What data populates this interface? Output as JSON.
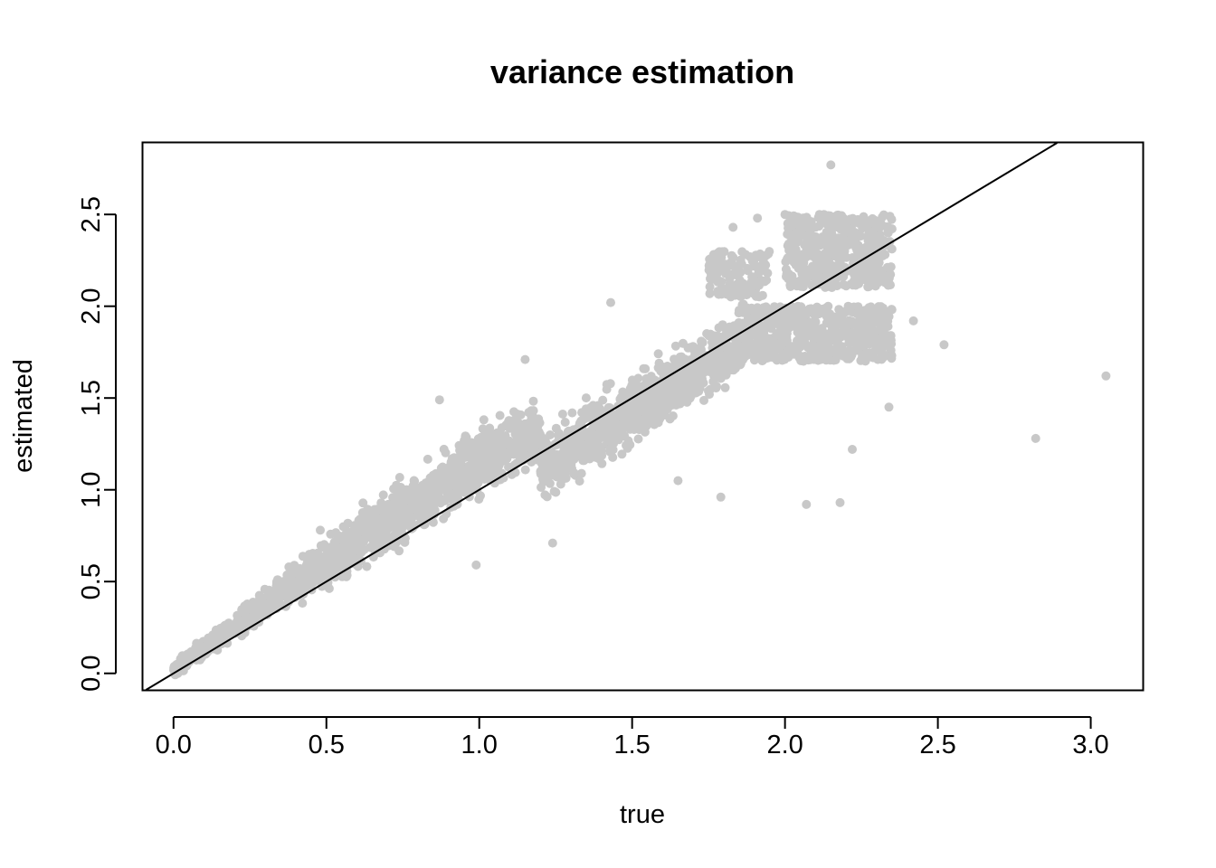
{
  "chart_data": {
    "type": "scatter",
    "title": "variance estimation",
    "xlabel": "true",
    "ylabel": "estimated",
    "xlim": [
      -0.1,
      3.17
    ],
    "ylim": [
      -0.09,
      2.89
    ],
    "x_ticks": [
      0.0,
      0.5,
      1.0,
      1.5,
      2.0,
      2.5,
      3.0
    ],
    "x_tick_labels": [
      "0.0",
      "0.5",
      "1.0",
      "1.5",
      "2.0",
      "2.5",
      "3.0"
    ],
    "y_ticks": [
      0.0,
      0.5,
      1.0,
      1.5,
      2.0,
      2.5
    ],
    "y_tick_labels": [
      "0.0",
      "0.5",
      "1.0",
      "1.5",
      "2.0",
      "2.5"
    ],
    "grid": false,
    "point_color": "#c8c8c8",
    "reference_line": {
      "slope": 1,
      "intercept": 0,
      "color": "#000000"
    },
    "point_bands": [
      {
        "x_range": [
          0.0,
          1.9
        ],
        "offset_at_zero": 0.02,
        "offset_per_unit": 0.12,
        "spread": 0.08
      },
      {
        "x_range": [
          1.9,
          2.35
        ],
        "y_range": [
          1.7,
          2.0
        ]
      },
      {
        "x_range": [
          2.0,
          2.35
        ],
        "y_range": [
          2.1,
          2.5
        ]
      },
      {
        "x_range": [
          1.75,
          1.95
        ],
        "y_range": [
          2.05,
          2.3
        ]
      }
    ],
    "notable_points": [
      {
        "x": 2.15,
        "y": 2.77
      },
      {
        "x": 3.05,
        "y": 1.62
      },
      {
        "x": 2.82,
        "y": 1.28
      },
      {
        "x": 2.52,
        "y": 1.79
      },
      {
        "x": 2.22,
        "y": 1.22
      },
      {
        "x": 2.18,
        "y": 0.93
      },
      {
        "x": 2.07,
        "y": 0.92
      },
      {
        "x": 1.79,
        "y": 0.96
      },
      {
        "x": 1.24,
        "y": 0.71
      },
      {
        "x": 0.99,
        "y": 0.59
      },
      {
        "x": 1.43,
        "y": 2.02
      },
      {
        "x": 1.91,
        "y": 2.48
      },
      {
        "x": 2.0,
        "y": 2.5
      },
      {
        "x": 1.83,
        "y": 2.43
      },
      {
        "x": 2.42,
        "y": 1.92
      },
      {
        "x": 2.34,
        "y": 1.45
      },
      {
        "x": 1.15,
        "y": 1.71
      },
      {
        "x": 0.87,
        "y": 1.49
      },
      {
        "x": 0.48,
        "y": 0.78
      },
      {
        "x": 1.65,
        "y": 1.05
      }
    ]
  }
}
